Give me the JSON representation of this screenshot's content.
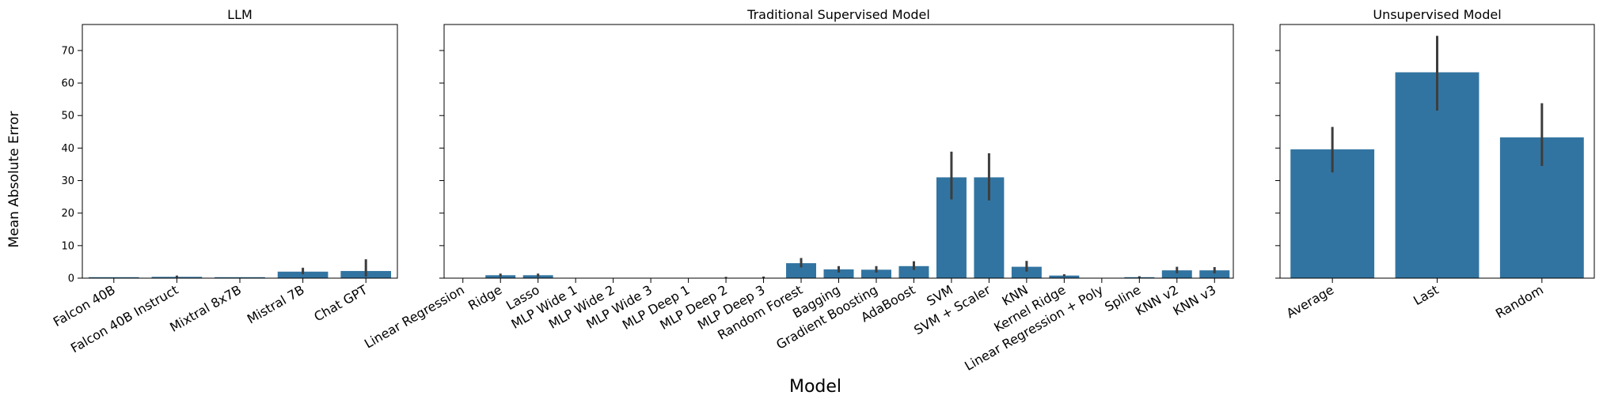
{
  "figure": {
    "xlabel": "Model",
    "ylabel": "Mean Absolute Error",
    "colors": {
      "bar": "#3274a1",
      "error_bar": "#3d3d3d"
    }
  },
  "chart_data": [
    {
      "type": "bar",
      "title": "LLM",
      "ylim": [
        0,
        78
      ],
      "yticks": [
        0,
        10,
        20,
        30,
        40,
        50,
        60,
        70
      ],
      "categories": [
        "Falcon 40B",
        "Falcon 40B Instruct",
        "Mixtral 8x7B",
        "Mistral 7B",
        "Chat GPT"
      ],
      "values": [
        0.3,
        0.4,
        0.3,
        2.0,
        2.2
      ],
      "error_low": [
        0.3,
        0.2,
        0.3,
        1.2,
        0.5
      ],
      "error_high": [
        0.3,
        0.8,
        0.3,
        3.2,
        5.8
      ]
    },
    {
      "type": "bar",
      "title": "Traditional Supervised Model",
      "ylim": [
        0,
        78
      ],
      "yticks": [
        0,
        10,
        20,
        30,
        40,
        50,
        60,
        70
      ],
      "categories": [
        "Linear Regression",
        "Ridge",
        "Lasso",
        "MLP Wide 1",
        "MLP Wide 2",
        "MLP Wide 3",
        "MLP Deep 1",
        "MLP Deep 2",
        "MLP Deep 3",
        "Random Forest",
        "Bagging",
        "Gradient Boosting",
        "AdaBoost",
        "SVM",
        "SVM + Scaler",
        "KNN",
        "Kernel Ridge",
        "Linear Regression + Poly",
        "Spline",
        "KNN v2",
        "KNN v3"
      ],
      "values": [
        0.0,
        0.9,
        0.9,
        0.0,
        0.0,
        0.0,
        0.0,
        0.1,
        0.1,
        4.6,
        2.7,
        2.6,
        3.7,
        31.0,
        31.0,
        3.5,
        0.8,
        0.0,
        0.3,
        2.4,
        2.4
      ],
      "error_low": [
        0.0,
        0.4,
        0.4,
        0.0,
        0.0,
        0.0,
        0.0,
        0.0,
        0.0,
        3.3,
        1.7,
        1.7,
        2.5,
        24.2,
        23.9,
        2.0,
        0.5,
        0.0,
        0.1,
        1.5,
        1.5
      ],
      "error_high": [
        0.0,
        1.4,
        1.4,
        0.0,
        0.0,
        0.0,
        0.0,
        0.4,
        0.5,
        6.2,
        3.7,
        3.7,
        5.2,
        38.9,
        38.4,
        5.3,
        1.2,
        0.0,
        0.6,
        3.5,
        3.4
      ]
    },
    {
      "type": "bar",
      "title": "Unsupervised Model",
      "ylim": [
        0,
        78
      ],
      "yticks": [
        0,
        10,
        20,
        30,
        40,
        50,
        60,
        70
      ],
      "categories": [
        "Average",
        "Last",
        "Random"
      ],
      "values": [
        39.6,
        63.3,
        43.3
      ],
      "error_low": [
        32.5,
        51.5,
        34.5
      ],
      "error_high": [
        46.5,
        74.5,
        53.8
      ]
    }
  ]
}
